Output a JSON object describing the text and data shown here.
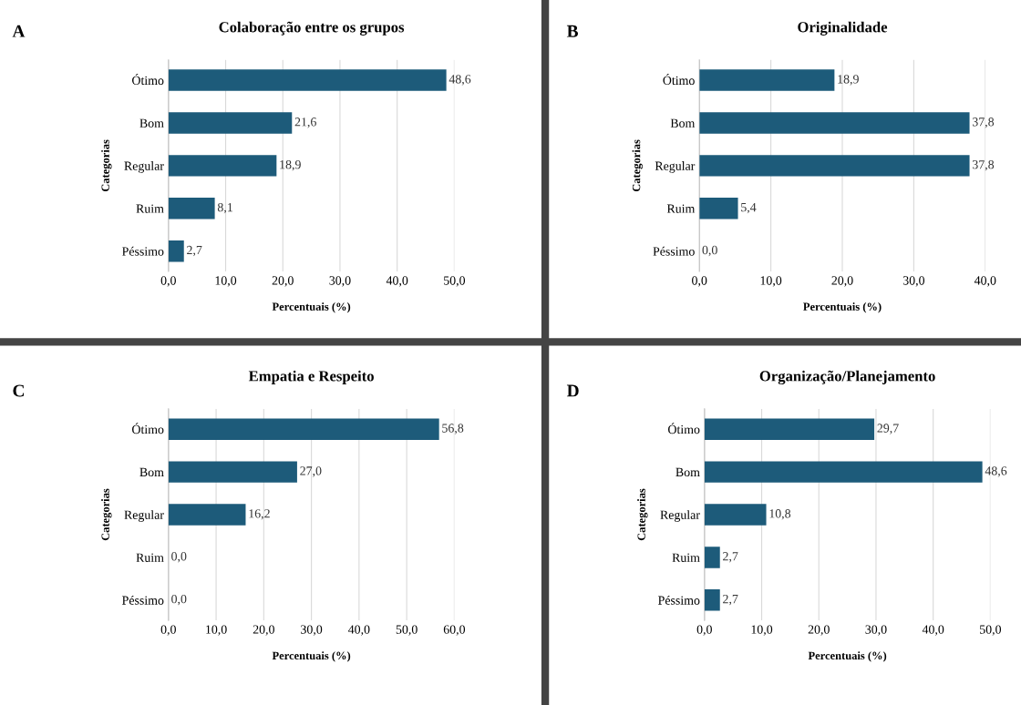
{
  "chart_data": [
    {
      "type": "bar",
      "orientation": "horizontal",
      "title": "Colaboração entre os grupos",
      "annotations": [
        "A"
      ],
      "xlabel": "Percentuais (%)",
      "ylabel": "Categorias",
      "categories": [
        "Ótimo",
        "Bom",
        "Regular",
        "Ruim",
        "Péssimo"
      ],
      "values": [
        48.6,
        21.6,
        18.9,
        8.1,
        2.7
      ],
      "value_labels": [
        "48,6",
        "21,6",
        "18,9",
        "8,1",
        "2,7"
      ],
      "color": "#1d5b7a",
      "xlim": [
        0,
        50
      ],
      "xticks": [
        {
          "value": 0,
          "label": "0,0"
        },
        {
          "value": 10,
          "label": "10,0"
        },
        {
          "value": 20,
          "label": "20,0"
        },
        {
          "value": 30,
          "label": "30,0"
        },
        {
          "value": 40,
          "label": "40,0"
        },
        {
          "value": 50,
          "label": "50,0"
        }
      ],
      "grid": "x",
      "legend": false
    },
    {
      "type": "bar",
      "orientation": "horizontal",
      "title": "Originalidade",
      "annotations": [
        "B"
      ],
      "xlabel": "Percentuais (%)",
      "ylabel": "Categorias",
      "categories": [
        "Ótimo",
        "Bom",
        "Regular",
        "Ruim",
        "Péssimo"
      ],
      "values": [
        18.9,
        37.8,
        37.8,
        5.4,
        0.0
      ],
      "value_labels": [
        "18,9",
        "37,8",
        "37,8",
        "5,4",
        "0,0"
      ],
      "color": "#1d5b7a",
      "xlim": [
        0,
        40
      ],
      "xticks": [
        {
          "value": 0,
          "label": "0,0"
        },
        {
          "value": 10,
          "label": "10,0"
        },
        {
          "value": 20,
          "label": "20,0"
        },
        {
          "value": 30,
          "label": "30,0"
        },
        {
          "value": 40,
          "label": "40,0"
        }
      ],
      "grid": "x",
      "legend": false
    },
    {
      "type": "bar",
      "orientation": "horizontal",
      "title": "Empatia e Respeito",
      "annotations": [
        "C"
      ],
      "xlabel": "Percentuais (%)",
      "ylabel": "Categorias",
      "categories": [
        "Ótimo",
        "Bom",
        "Regular",
        "Ruim",
        "Péssimo"
      ],
      "values": [
        56.8,
        27.0,
        16.2,
        0.0,
        0.0
      ],
      "value_labels": [
        "56,8",
        "27,0",
        "16,2",
        "0,0",
        "0,0"
      ],
      "color": "#1d5b7a",
      "xlim": [
        0,
        60
      ],
      "xticks": [
        {
          "value": 0,
          "label": "0,0"
        },
        {
          "value": 10,
          "label": "10,0"
        },
        {
          "value": 20,
          "label": "20,0"
        },
        {
          "value": 30,
          "label": "30,0"
        },
        {
          "value": 40,
          "label": "40,0"
        },
        {
          "value": 50,
          "label": "50,0"
        },
        {
          "value": 60,
          "label": "60,0"
        }
      ],
      "grid": "x",
      "legend": false
    },
    {
      "type": "bar",
      "orientation": "horizontal",
      "title": "Organização/Planejamento",
      "annotations": [
        "D"
      ],
      "xlabel": "Percentuais (%)",
      "ylabel": "Categorias",
      "categories": [
        "Ótimo",
        "Bom",
        "Regular",
        "Ruim",
        "Péssimo"
      ],
      "values": [
        29.7,
        48.6,
        10.8,
        2.7,
        2.7
      ],
      "value_labels": [
        "29,7",
        "48,6",
        "10,8",
        "2,7",
        "2,7"
      ],
      "color": "#1d5b7a",
      "xlim": [
        0,
        50
      ],
      "xticks": [
        {
          "value": 0,
          "label": "0,0"
        },
        {
          "value": 10,
          "label": "10,0"
        },
        {
          "value": 20,
          "label": "20,0"
        },
        {
          "value": 30,
          "label": "30,0"
        },
        {
          "value": 40,
          "label": "40,0"
        },
        {
          "value": 50,
          "label": "50,0"
        }
      ],
      "grid": "x",
      "legend": false
    }
  ]
}
